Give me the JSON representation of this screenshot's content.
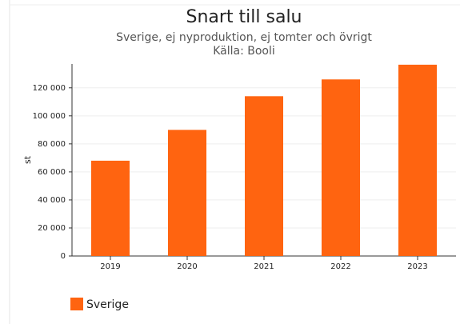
{
  "chart_data": {
    "type": "bar",
    "title": "Snart till salu",
    "subtitle": "Sverige, ej nyproduktion, ej tomter och övrigt",
    "source": "Källa: Booli",
    "ylabel": "st",
    "categories": [
      "2019",
      "2020",
      "2021",
      "2022",
      "2023"
    ],
    "series": [
      {
        "name": "Sverige",
        "color": "#ff6410",
        "values": [
          68000,
          90000,
          114000,
          126000,
          136500
        ]
      }
    ],
    "ylim": [
      0,
      137000
    ],
    "yticks": [
      0,
      {
        "value": 20000,
        "label": "20 000"
      },
      {
        "value": 40000,
        "label": "40 000"
      },
      {
        "value": 60000,
        "label": "60 000"
      },
      {
        "value": 80000,
        "label": "80 000"
      },
      {
        "value": 100000,
        "label": "100 000"
      },
      {
        "value": 120000,
        "label": "120 000"
      }
    ],
    "grid": true
  }
}
